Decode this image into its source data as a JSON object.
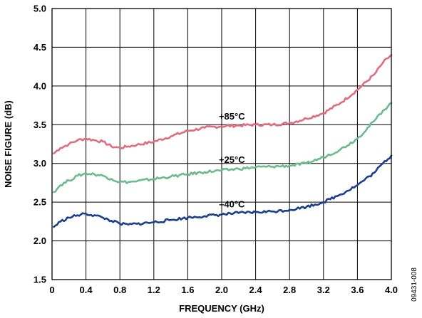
{
  "figure_id": "09431-008",
  "chart_data": {
    "type": "line",
    "title": "",
    "xlabel": "FREQUENCY (GHz)",
    "ylabel": "NOISE FIGURE (dB)",
    "xlim": [
      0,
      4.0
    ],
    "ylim": [
      1.5,
      5.0
    ],
    "grid": true,
    "x_ticks": [
      "0",
      "0.4",
      "0.8",
      "1.2",
      "1.6",
      "2.0",
      "2.4",
      "2.8",
      "3.2",
      "3.6",
      "4.0"
    ],
    "y_ticks": [
      "1.5",
      "2.0",
      "2.5",
      "3.0",
      "3.5",
      "4.0",
      "4.5",
      "5.0"
    ],
    "series": [
      {
        "name": "+85°C",
        "color": "#e06c80",
        "x": [
          0.02,
          0.1,
          0.2,
          0.3,
          0.4,
          0.5,
          0.6,
          0.7,
          0.8,
          0.9,
          1.0,
          1.2,
          1.4,
          1.6,
          1.8,
          2.0,
          2.2,
          2.4,
          2.6,
          2.8,
          3.0,
          3.2,
          3.4,
          3.6,
          3.8,
          3.9,
          4.0
        ],
        "y": [
          3.13,
          3.2,
          3.25,
          3.3,
          3.32,
          3.3,
          3.28,
          3.22,
          3.2,
          3.22,
          3.24,
          3.28,
          3.35,
          3.42,
          3.46,
          3.48,
          3.49,
          3.5,
          3.5,
          3.52,
          3.58,
          3.65,
          3.78,
          3.95,
          4.15,
          4.3,
          4.4
        ]
      },
      {
        "name": "+25°C",
        "color": "#6cba8e",
        "x": [
          0.02,
          0.1,
          0.2,
          0.3,
          0.4,
          0.5,
          0.6,
          0.7,
          0.8,
          0.9,
          1.0,
          1.2,
          1.4,
          1.6,
          1.8,
          2.0,
          2.2,
          2.4,
          2.6,
          2.8,
          3.0,
          3.2,
          3.4,
          3.6,
          3.8,
          3.9,
          4.0
        ],
        "y": [
          2.63,
          2.72,
          2.78,
          2.84,
          2.87,
          2.86,
          2.84,
          2.8,
          2.76,
          2.76,
          2.77,
          2.8,
          2.83,
          2.86,
          2.89,
          2.91,
          2.93,
          2.95,
          2.96,
          2.97,
          3.0,
          3.08,
          3.18,
          3.32,
          3.55,
          3.68,
          3.78
        ]
      },
      {
        "name": "–40°C",
        "color": "#1c3f8c",
        "x": [
          0.02,
          0.1,
          0.2,
          0.3,
          0.4,
          0.5,
          0.6,
          0.7,
          0.8,
          0.9,
          1.0,
          1.2,
          1.4,
          1.6,
          1.8,
          2.0,
          2.2,
          2.4,
          2.6,
          2.8,
          3.0,
          3.2,
          3.4,
          3.6,
          3.8,
          3.9,
          4.0
        ],
        "y": [
          2.18,
          2.25,
          2.3,
          2.33,
          2.35,
          2.33,
          2.3,
          2.26,
          2.22,
          2.21,
          2.22,
          2.24,
          2.27,
          2.3,
          2.32,
          2.34,
          2.36,
          2.37,
          2.38,
          2.4,
          2.44,
          2.5,
          2.6,
          2.72,
          2.88,
          3.0,
          3.1
        ]
      }
    ]
  }
}
